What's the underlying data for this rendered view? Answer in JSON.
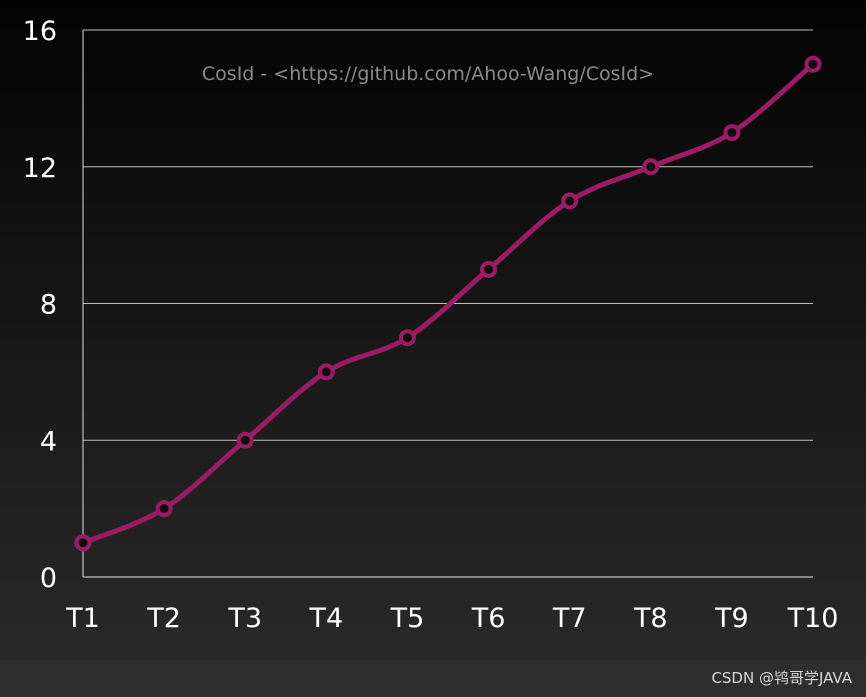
{
  "chart_data": {
    "type": "line",
    "title": "",
    "annotation": "CosId - <https://github.com/Ahoo-Wang/CosId>",
    "xlabel": "",
    "ylabel": "",
    "categories": [
      "T1",
      "T2",
      "T3",
      "T4",
      "T5",
      "T6",
      "T7",
      "T8",
      "T9",
      "T10"
    ],
    "series": [
      {
        "values": [
          1,
          2,
          4,
          6,
          7,
          9,
          11,
          12,
          13,
          15
        ]
      }
    ],
    "ylim": [
      0,
      16
    ],
    "yticks": [
      0,
      4,
      8,
      12,
      16
    ],
    "grid": true,
    "colors": {
      "line": "#9b1b64",
      "grid": "#bdbdbd",
      "text": "#ffffff",
      "annotation": "#8a8a8a"
    }
  },
  "watermark": "CSDN @鸨哥学JAVA"
}
